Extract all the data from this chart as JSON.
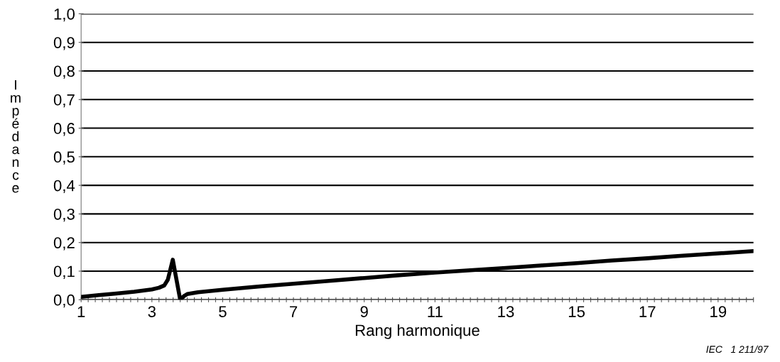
{
  "chart_data": {
    "type": "line",
    "xlabel": "Rang harmonique",
    "ylabel": "Impédance",
    "annotations": [
      "IEC   1 211/97"
    ],
    "x": [
      1,
      1.5,
      2,
      2.5,
      3,
      3.2,
      3.35,
      3.45,
      3.59,
      3.8,
      3.9,
      4.0,
      4.3,
      4.7,
      5,
      6,
      7,
      8,
      9,
      10,
      11,
      12,
      13,
      14,
      15,
      16,
      17,
      18,
      19,
      20
    ],
    "series": [
      {
        "color": "#000000",
        "values": [
          0.01,
          0.016,
          0.022,
          0.028,
          0.036,
          0.042,
          0.05,
          0.07,
          0.14,
          0.0,
          0.012,
          0.02,
          0.026,
          0.031,
          0.035,
          0.046,
          0.056,
          0.066,
          0.076,
          0.086,
          0.095,
          0.103,
          0.111,
          0.12,
          0.128,
          0.137,
          0.145,
          0.154,
          0.162,
          0.17
        ]
      }
    ],
    "xlim": [
      1,
      20
    ],
    "xticks": [
      1,
      {
        "value": 1.2,
        "label": null
      },
      {
        "value": 1.4,
        "label": null
      },
      {
        "value": 1.6,
        "label": null
      },
      {
        "value": 1.8,
        "label": null
      },
      {
        "value": 2,
        "label": null
      },
      {
        "value": 2.2,
        "label": null
      },
      {
        "value": 2.4,
        "label": null
      },
      {
        "value": 2.6,
        "label": null
      },
      {
        "value": 2.8,
        "label": null
      },
      3,
      {
        "value": 3.2,
        "label": null
      },
      {
        "value": 3.4,
        "label": null
      },
      {
        "value": 3.6,
        "label": null
      },
      {
        "value": 3.8,
        "label": null
      },
      {
        "value": 4,
        "label": null
      },
      {
        "value": 4.2,
        "label": null
      },
      {
        "value": 4.4,
        "label": null
      },
      {
        "value": 4.6,
        "label": null
      },
      {
        "value": 4.8,
        "label": null
      },
      5,
      {
        "value": 5.2,
        "label": null
      },
      {
        "value": 5.4,
        "label": null
      },
      {
        "value": 5.6,
        "label": null
      },
      {
        "value": 5.8,
        "label": null
      },
      {
        "value": 6,
        "label": null
      },
      {
        "value": 6.2,
        "label": null
      },
      {
        "value": 6.4,
        "label": null
      },
      {
        "value": 6.6,
        "label": null
      },
      {
        "value": 6.8,
        "label": null
      },
      7,
      {
        "value": 7.2,
        "label": null
      },
      {
        "value": 7.4,
        "label": null
      },
      {
        "value": 7.6,
        "label": null
      },
      {
        "value": 7.8,
        "label": null
      },
      {
        "value": 8,
        "label": null
      },
      {
        "value": 8.2,
        "label": null
      },
      {
        "value": 8.4,
        "label": null
      },
      {
        "value": 8.6,
        "label": null
      },
      {
        "value": 8.8,
        "label": null
      },
      9,
      {
        "value": 9.2,
        "label": null
      },
      {
        "value": 9.4,
        "label": null
      },
      {
        "value": 9.6,
        "label": null
      },
      {
        "value": 9.8,
        "label": null
      },
      {
        "value": 10,
        "label": null
      },
      {
        "value": 10.2,
        "label": null
      },
      {
        "value": 10.4,
        "label": null
      },
      {
        "value": 10.6,
        "label": null
      },
      {
        "value": 10.8,
        "label": null
      },
      11,
      {
        "value": 11.2,
        "label": null
      },
      {
        "value": 11.4,
        "label": null
      },
      {
        "value": 11.6,
        "label": null
      },
      {
        "value": 11.8,
        "label": null
      },
      {
        "value": 12,
        "label": null
      },
      {
        "value": 12.2,
        "label": null
      },
      {
        "value": 12.4,
        "label": null
      },
      {
        "value": 12.6,
        "label": null
      },
      {
        "value": 12.8,
        "label": null
      },
      13,
      {
        "value": 13.2,
        "label": null
      },
      {
        "value": 13.4,
        "label": null
      },
      {
        "value": 13.6,
        "label": null
      },
      {
        "value": 13.8,
        "label": null
      },
      {
        "value": 14,
        "label": null
      },
      {
        "value": 14.2,
        "label": null
      },
      {
        "value": 14.4,
        "label": null
      },
      {
        "value": 14.6,
        "label": null
      },
      {
        "value": 14.8,
        "label": null
      },
      15,
      {
        "value": 15.2,
        "label": null
      },
      {
        "value": 15.4,
        "label": null
      },
      {
        "value": 15.6,
        "label": null
      },
      {
        "value": 15.8,
        "label": null
      },
      {
        "value": 16,
        "label": null
      },
      {
        "value": 16.2,
        "label": null
      },
      {
        "value": 16.4,
        "label": null
      },
      {
        "value": 16.6,
        "label": null
      },
      {
        "value": 16.8,
        "label": null
      },
      17,
      {
        "value": 17.2,
        "label": null
      },
      {
        "value": 17.4,
        "label": null
      },
      {
        "value": 17.6,
        "label": null
      },
      {
        "value": 17.8,
        "label": null
      },
      {
        "value": 18,
        "label": null
      },
      {
        "value": 18.2,
        "label": null
      },
      {
        "value": 18.4,
        "label": null
      },
      {
        "value": 18.6,
        "label": null
      },
      {
        "value": 18.8,
        "label": null
      },
      19,
      {
        "value": 19.2,
        "label": null
      },
      {
        "value": 19.4,
        "label": null
      },
      {
        "value": 19.6,
        "label": null
      },
      {
        "value": 19.8,
        "label": null
      },
      {
        "value": 20,
        "label": null
      }
    ],
    "ylim": [
      0,
      1
    ],
    "yticks": [
      {
        "value": 0,
        "label": "0,0"
      },
      {
        "value": 0.1,
        "label": "0,1"
      },
      {
        "value": 0.2,
        "label": "0,2"
      },
      {
        "value": 0.3,
        "label": "0,3"
      },
      {
        "value": 0.4,
        "label": "0,4"
      },
      {
        "value": 0.5,
        "label": "0,5"
      },
      {
        "value": 0.6,
        "label": "0,6"
      },
      {
        "value": 0.7,
        "label": "0,7"
      },
      {
        "value": 0.8,
        "label": "0,8"
      },
      {
        "value": 0.9,
        "label": "0,9"
      },
      {
        "value": 1,
        "label": "1,0"
      }
    ],
    "grid": "y",
    "marker": "none",
    "line_style": "solid"
  }
}
